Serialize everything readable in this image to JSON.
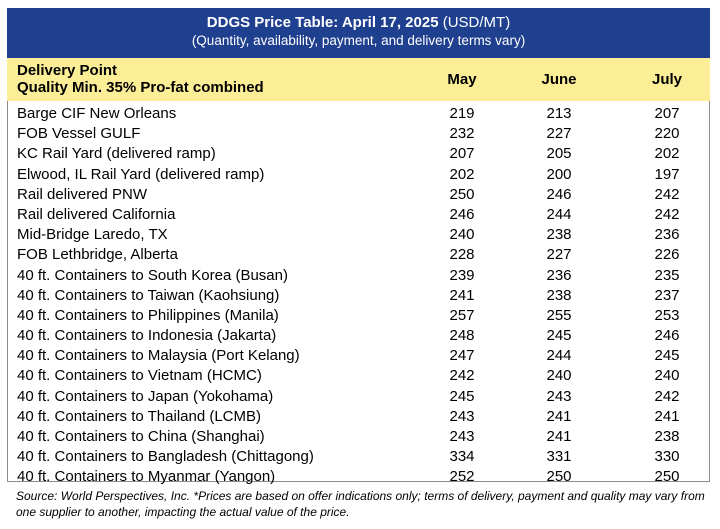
{
  "title": {
    "bold": "DDGS Price Table: April 17, 2025",
    "unit": "(USD/MT)",
    "subtitle": "(Quantity, availability, payment, and delivery terms vary)"
  },
  "header": {
    "label_line1": "Delivery Point",
    "label_line2": "Quality Min. 35% Pro-fat combined",
    "col_may": "May",
    "col_june": "June",
    "col_july": "July"
  },
  "rows": [
    {
      "point": "Barge CIF New Orleans",
      "may": "219",
      "june": "213",
      "july": "207"
    },
    {
      "point": "FOB Vessel GULF",
      "may": "232",
      "june": "227",
      "july": "220"
    },
    {
      "point": "KC Rail Yard (delivered ramp)",
      "may": "207",
      "june": "205",
      "july": "202"
    },
    {
      "point": "Elwood, IL Rail Yard (delivered ramp)",
      "may": "202",
      "june": "200",
      "july": "197"
    },
    {
      "point": "Rail delivered PNW",
      "may": "250",
      "june": "246",
      "july": "242"
    },
    {
      "point": "Rail delivered California",
      "may": "246",
      "june": "244",
      "july": "242"
    },
    {
      "point": "Mid-Bridge Laredo, TX",
      "may": "240",
      "june": "238",
      "july": "236"
    },
    {
      "point": "FOB Lethbridge, Alberta",
      "may": "228",
      "june": "227",
      "july": "226"
    },
    {
      "point": "40 ft. Containers to South Korea (Busan)",
      "may": "239",
      "june": "236",
      "july": "235"
    },
    {
      "point": "40 ft. Containers to Taiwan (Kaohsiung)",
      "may": "241",
      "june": "238",
      "july": "237"
    },
    {
      "point": "40 ft. Containers to Philippines (Manila)",
      "may": "257",
      "june": "255",
      "july": "253"
    },
    {
      "point": "40 ft. Containers to Indonesia (Jakarta)",
      "may": "248",
      "june": "245",
      "july": "246"
    },
    {
      "point": "40 ft. Containers to Malaysia (Port Kelang)",
      "may": "247",
      "june": "244",
      "july": "245"
    },
    {
      "point": "40 ft. Containers to Vietnam (HCMC)",
      "may": "242",
      "june": "240",
      "july": "240"
    },
    {
      "point": "40 ft. Containers to Japan (Yokohama)",
      "may": "245",
      "june": "243",
      "july": "242"
    },
    {
      "point": "40 ft. Containers to Thailand (LCMB)",
      "may": "243",
      "june": "241",
      "july": "241"
    },
    {
      "point": "40 ft. Containers to China (Shanghai)",
      "may": "243",
      "june": "241",
      "july": "238"
    },
    {
      "point": "40 ft. Containers to Bangladesh (Chittagong)",
      "may": "334",
      "june": "331",
      "july": "330"
    },
    {
      "point": "40 ft. Containers to Myanmar (Yangon)",
      "may": "252",
      "june": "250",
      "july": "250"
    }
  ],
  "source": "Source: World Perspectives, Inc. *Prices are based on offer indications only; terms of delivery, payment and quality may vary from one supplier to another, impacting the actual value of the price.",
  "colors": {
    "title_bg": "#1f3f8f",
    "header_bg": "#fcee97"
  }
}
